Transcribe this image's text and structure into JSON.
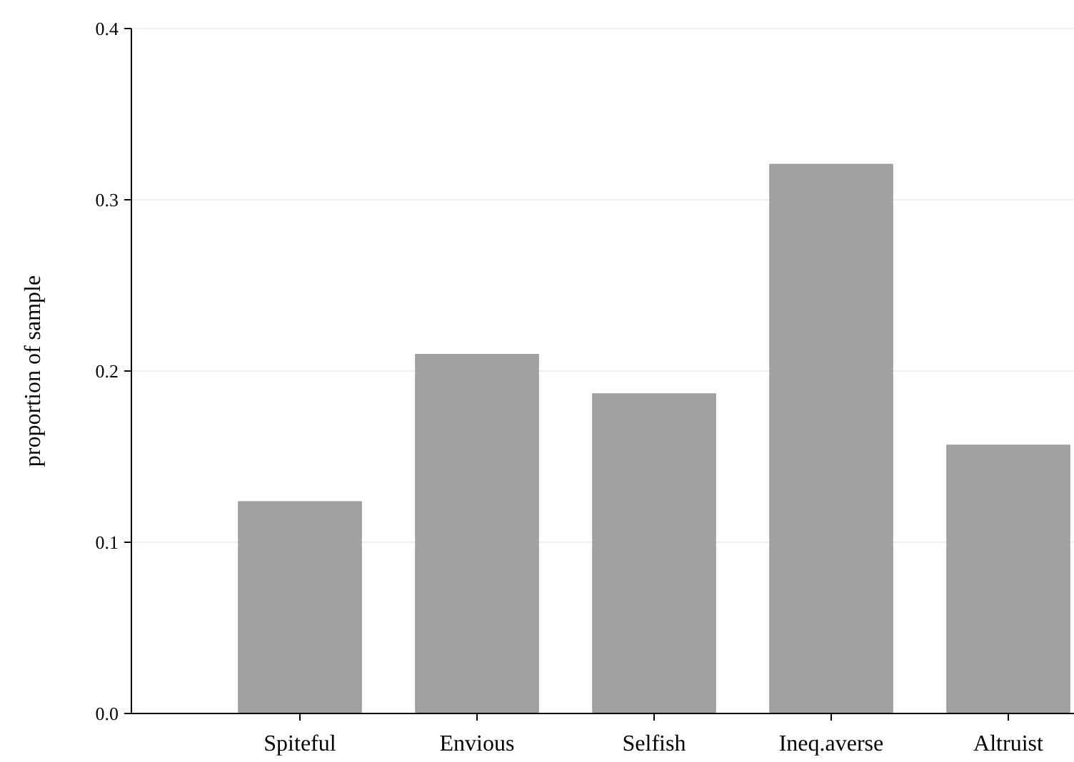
{
  "chart_data": {
    "type": "bar",
    "ylabel": "proportion of sample",
    "categories": [
      "Spiteful",
      "Envious",
      "Selfish",
      "Ineq.averse",
      "Altruist"
    ],
    "values": [
      0.124,
      0.21,
      0.187,
      0.321,
      0.157
    ],
    "color": "#a0a0a0",
    "ylim": [
      0,
      0.4
    ],
    "yticks": [
      {
        "value": 0,
        "label": "0.0"
      },
      {
        "value": 0.1,
        "label": "0.1"
      },
      {
        "value": 0.2,
        "label": "0.2"
      },
      {
        "value": 0.3,
        "label": "0.3"
      },
      {
        "value": 0.4,
        "label": "0.4"
      }
    ],
    "grid": "y"
  }
}
